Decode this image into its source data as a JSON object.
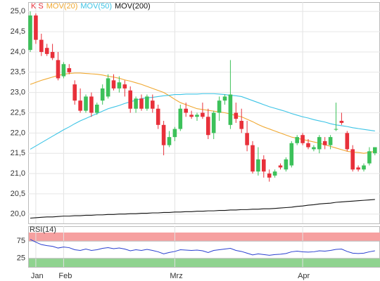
{
  "chart_data": [
    {
      "type": "candlestick",
      "categories": [
        null,
        "Jan",
        null,
        null,
        null,
        null,
        "Feb",
        null,
        null,
        null,
        null,
        null,
        null,
        null,
        null,
        null,
        null,
        null,
        null,
        null,
        null,
        null,
        null,
        null,
        null,
        null,
        "Mrz",
        null,
        null,
        null,
        null,
        null,
        null,
        null,
        null,
        null,
        null,
        null,
        null,
        null,
        null,
        null,
        null,
        null,
        null,
        null,
        null,
        null,
        null,
        "Apr",
        null,
        null,
        null,
        null,
        null,
        null,
        null,
        null,
        null,
        null,
        null,
        null,
        null
      ],
      "candles": {
        "name": "K S",
        "color": "#e8303a",
        "up_color": "#3cc15a",
        "down_color": "#e8303a",
        "open": [
          24.05,
          24.9,
          24.3,
          24.1,
          24.0,
          23.8,
          23.4,
          23.6,
          23.2,
          22.8,
          22.55,
          22.9,
          22.5,
          22.8,
          22.9,
          23.3,
          23.1,
          23.2,
          23.05,
          22.6,
          22.85,
          22.6,
          22.8,
          22.6,
          22.2,
          21.7,
          21.9,
          22.1,
          22.6,
          22.45,
          22.4,
          22.5,
          22.4,
          22.0,
          22.5,
          22.8,
          22.2,
          22.5,
          22.3,
          22.0,
          21.7,
          21.05,
          21.35,
          21.0,
          20.95,
          21.2,
          21.1,
          21.2,
          21.75,
          21.95,
          21.75,
          21.6,
          21.6,
          21.8,
          21.7,
          22.1,
          22.3,
          22.0,
          21.6,
          21.15,
          21.1,
          21.25,
          21.5
        ],
        "high": [
          25.0,
          24.95,
          24.45,
          24.2,
          24.2,
          24.0,
          23.75,
          23.7,
          23.3,
          23.1,
          22.95,
          23.0,
          22.75,
          23.2,
          23.45,
          23.45,
          23.4,
          23.3,
          23.15,
          22.9,
          22.95,
          22.95,
          22.95,
          22.7,
          22.3,
          22.05,
          22.15,
          22.7,
          22.75,
          22.55,
          22.5,
          22.75,
          22.6,
          22.55,
          22.9,
          22.95,
          23.8,
          22.75,
          22.6,
          22.3,
          21.8,
          21.65,
          21.45,
          21.1,
          21.1,
          21.25,
          21.4,
          21.8,
          21.95,
          22.0,
          21.85,
          21.7,
          21.95,
          21.9,
          21.95,
          22.75,
          22.5,
          22.05,
          21.7,
          21.2,
          21.25,
          21.65,
          21.65
        ],
        "low": [
          24.0,
          24.2,
          23.9,
          23.9,
          23.8,
          23.3,
          23.35,
          23.45,
          22.7,
          22.5,
          22.5,
          22.4,
          22.45,
          22.7,
          22.85,
          23.05,
          23.0,
          22.9,
          22.5,
          22.5,
          22.55,
          22.55,
          22.5,
          22.1,
          21.45,
          21.65,
          21.8,
          22.05,
          22.4,
          22.35,
          22.3,
          22.35,
          21.85,
          21.85,
          22.3,
          22.7,
          22.1,
          22.25,
          22.0,
          21.55,
          21.0,
          20.95,
          20.9,
          20.8,
          20.9,
          21.1,
          21.05,
          21.15,
          21.7,
          21.7,
          21.6,
          21.55,
          21.5,
          21.6,
          21.6,
          22.05,
          22.2,
          21.55,
          21.05,
          21.05,
          21.05,
          21.2,
          21.45
        ],
        "close": [
          24.9,
          24.3,
          24.0,
          23.95,
          23.85,
          23.35,
          23.7,
          23.5,
          22.8,
          22.55,
          22.9,
          22.5,
          22.7,
          23.1,
          23.35,
          23.1,
          23.25,
          23.1,
          22.6,
          22.85,
          22.6,
          22.9,
          22.6,
          22.2,
          21.7,
          21.9,
          22.1,
          22.6,
          22.5,
          22.4,
          22.45,
          22.4,
          21.95,
          22.5,
          22.8,
          22.9,
          22.95,
          22.35,
          22.1,
          21.7,
          21.05,
          21.35,
          21.05,
          20.9,
          21.05,
          21.15,
          21.35,
          21.75,
          21.9,
          21.75,
          21.65,
          21.65,
          21.9,
          21.7,
          21.9,
          22.1,
          22.25,
          21.6,
          21.1,
          21.1,
          21.2,
          21.55,
          21.65
        ]
      },
      "lines": [
        {
          "name": "MOV(20)",
          "color": "#f0a830",
          "values": [
            23.2,
            23.25,
            23.3,
            23.34,
            23.38,
            23.42,
            23.45,
            23.47,
            23.48,
            23.48,
            23.47,
            23.46,
            23.45,
            23.43,
            23.4,
            23.38,
            23.35,
            23.31,
            23.28,
            23.24,
            23.2,
            23.15,
            23.1,
            23.05,
            23.0,
            22.92,
            22.83,
            22.75,
            22.7,
            22.65,
            22.6,
            22.58,
            22.56,
            22.54,
            22.52,
            22.5,
            22.47,
            22.43,
            22.4,
            22.34,
            22.28,
            22.21,
            22.15,
            22.1,
            22.05,
            22.0,
            21.95,
            21.9,
            21.87,
            21.84,
            21.81,
            21.78,
            21.75,
            21.71,
            21.67,
            21.63,
            21.59,
            21.55,
            21.53,
            21.52,
            21.5,
            21.52,
            21.55
          ]
        },
        {
          "name": "MOV(50)",
          "color": "#3cc4e6",
          "values": [
            21.6,
            21.68,
            21.76,
            21.84,
            21.92,
            22.0,
            22.08,
            22.15,
            22.23,
            22.3,
            22.36,
            22.42,
            22.48,
            22.54,
            22.6,
            22.64,
            22.68,
            22.73,
            22.77,
            22.81,
            22.85,
            22.87,
            22.88,
            22.9,
            22.92,
            22.93,
            22.95,
            22.95,
            22.96,
            22.96,
            22.96,
            22.97,
            22.97,
            22.97,
            22.96,
            22.95,
            22.93,
            22.92,
            22.9,
            22.85,
            22.8,
            22.75,
            22.7,
            22.65,
            22.61,
            22.57,
            22.53,
            22.48,
            22.44,
            22.4,
            22.37,
            22.33,
            22.3,
            22.27,
            22.23,
            22.2,
            22.18,
            22.16,
            22.13,
            22.11,
            22.09,
            22.07,
            22.05
          ]
        },
        {
          "name": "MOV(200)",
          "color": "#111111",
          "values": [
            19.9,
            19.91,
            19.92,
            19.93,
            19.93,
            19.94,
            19.95,
            19.95,
            19.96,
            19.96,
            19.97,
            19.97,
            19.98,
            19.98,
            19.99,
            19.99,
            20.0,
            20.0,
            20.01,
            20.01,
            20.02,
            20.02,
            20.03,
            20.03,
            20.04,
            20.04,
            20.05,
            20.05,
            20.06,
            20.06,
            20.07,
            20.07,
            20.08,
            20.08,
            20.09,
            20.09,
            20.1,
            20.1,
            20.11,
            20.11,
            20.12,
            20.12,
            20.13,
            20.13,
            20.14,
            20.15,
            20.16,
            20.17,
            20.19,
            20.2,
            20.22,
            20.23,
            20.25,
            20.26,
            20.27,
            20.29,
            20.3,
            20.31,
            20.32,
            20.33,
            20.34,
            20.35,
            20.36
          ]
        }
      ],
      "ylim": [
        19.77,
        25.23
      ],
      "yticks": [
        {
          "value": 20,
          "label": "20,0"
        },
        {
          "value": 20.5,
          "label": "20,5"
        },
        {
          "value": 21,
          "label": "21,0"
        },
        {
          "value": 21.5,
          "label": "21,5"
        },
        {
          "value": 22,
          "label": "22,0"
        },
        {
          "value": 22.5,
          "label": "22,5"
        },
        {
          "value": 23,
          "label": "23,0"
        },
        {
          "value": 23.5,
          "label": "23,5"
        },
        {
          "value": 24,
          "label": "24,0"
        },
        {
          "value": 24.5,
          "label": "24,5"
        },
        {
          "value": 25,
          "label": "25,0"
        }
      ],
      "grid": true
    },
    {
      "type": "line",
      "series": [
        {
          "name": "RSI(14)",
          "color": "#2a3fd0",
          "values": [
            80,
            72,
            65,
            62,
            60,
            55,
            58,
            56,
            50,
            48,
            52,
            48,
            50,
            54,
            56,
            53,
            55,
            52,
            47,
            50,
            48,
            51,
            48,
            44,
            38,
            42,
            45,
            50,
            49,
            48,
            49,
            47,
            42,
            48,
            50,
            52,
            54,
            48,
            45,
            40,
            35,
            38,
            36,
            34,
            36,
            37,
            39,
            44,
            46,
            44,
            43,
            44,
            47,
            46,
            48,
            51,
            52,
            45,
            40,
            39,
            40,
            44,
            47
          ]
        }
      ],
      "ylim": [
        0,
        100
      ],
      "yticks": [
        25,
        75
      ],
      "bands": [
        {
          "from": 75,
          "to": 100,
          "color": "#f6a0a0"
        },
        {
          "from": 0,
          "to": 25,
          "color": "#8fd38f"
        }
      ]
    }
  ]
}
